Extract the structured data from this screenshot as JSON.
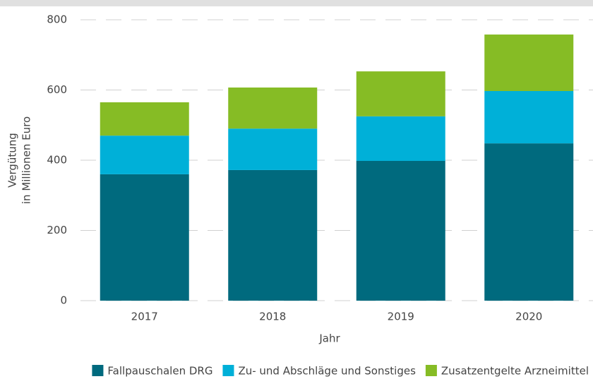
{
  "chart_data": {
    "type": "stacked_bar",
    "ylabel": [
      "Vergütung",
      "in Millionen Euro"
    ],
    "xlabel": "Jahr",
    "categories": [
      "2017",
      "2018",
      "2019",
      "2020"
    ],
    "series": [
      {
        "name": "Fallpauschalen DRG",
        "color": "#006a7e",
        "values": [
          360,
          372,
          398,
          448
        ]
      },
      {
        "name": "Zu- und Abschläge und Sonstiges",
        "color": "#00b0d8",
        "values": [
          110,
          118,
          127,
          149
        ]
      },
      {
        "name": "Zusatzentgelte Arzneimittel",
        "color": "#86bc25",
        "values": [
          95,
          117,
          128,
          161
        ]
      }
    ],
    "ylim": [
      0,
      800
    ],
    "yticks": [
      0,
      200,
      400,
      600,
      800
    ],
    "grid": true,
    "legend": "bottom"
  }
}
